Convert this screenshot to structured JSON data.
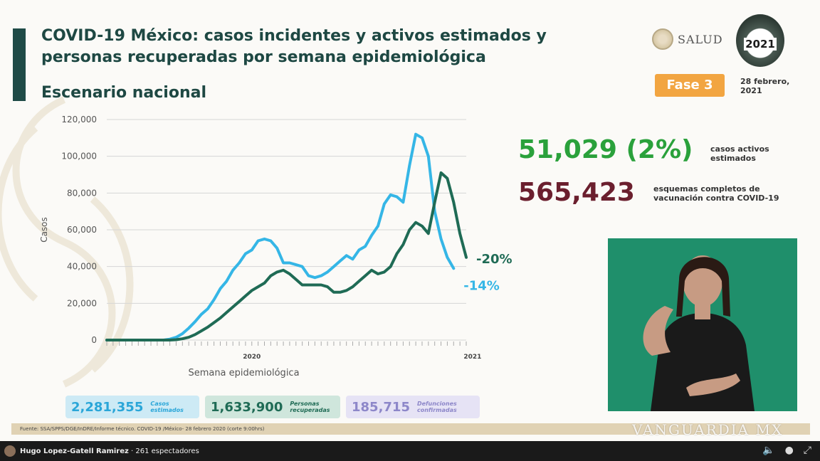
{
  "slide": {
    "title": "COVID-19 México: casos incidentes y activos estimados y personas recuperadas por semana epidemiológica",
    "subtitle": "Escenario nacional",
    "logo_text": "SALUD",
    "year_badge": "2021",
    "phase": "Fase 3",
    "date": "28 febrero, 2021",
    "source": "Fuente: SSA/SPPS/DGE/InDRE/Informe técnico. COVID-19 /México- 28 febrero 2020 (corte 9:00hrs)",
    "watermark": "VANGUARDIA MX"
  },
  "stats": {
    "active_value": "51,029 (2%)",
    "active_label": "casos activos estimados",
    "active_color": "#2aa13b",
    "vaccine_value": "565,423",
    "vaccine_label": "esquemas completos de vacunación contra COVID-19",
    "vaccine_color": "#6b1f2e"
  },
  "summary": [
    {
      "value": "2,281,355",
      "label": "Casos estimados",
      "bg": "#cdeaf5",
      "color": "#2aa6d8"
    },
    {
      "value": "1,633,900",
      "label": "Personas recuperadas",
      "bg": "#cfe6dc",
      "color": "#1f6b55"
    },
    {
      "value": "185,715",
      "label": "Defunciones confirmadas",
      "bg": "#e6e3f5",
      "color": "#8d87c9"
    }
  ],
  "stream": {
    "presenter": "Hugo Lopez-Gatell Ramirez",
    "viewers": "261 espectadores",
    "icons": [
      "volume-icon",
      "location-icon",
      "expand-icon"
    ]
  },
  "chart_data": {
    "type": "line",
    "ylabel": "Casos",
    "xlabel": "Semana epidemiológica",
    "ylim": [
      0,
      120000
    ],
    "yticks": [
      0,
      20000,
      40000,
      60000,
      80000,
      100000,
      120000
    ],
    "ytick_labels": [
      "0",
      "20,000",
      "40,000",
      "60,000",
      "80,000",
      "100,000",
      "120,000"
    ],
    "year_labels": [
      {
        "week": 23,
        "label": "2020"
      },
      {
        "week": 58,
        "label": "2021"
      }
    ],
    "series": [
      {
        "color": "#35b6e6",
        "end_label": "-14%",
        "values": [
          0,
          0,
          0,
          0,
          0,
          0,
          0,
          0,
          0,
          0,
          500,
          1500,
          3500,
          6500,
          10000,
          14000,
          17000,
          22000,
          28000,
          32000,
          38000,
          42000,
          47000,
          49000,
          54000,
          55000,
          54000,
          50000,
          42000,
          42000,
          41000,
          40000,
          35000,
          34000,
          35000,
          37000,
          40000,
          43000,
          46000,
          44000,
          49000,
          51000,
          57000,
          62000,
          74000,
          79000,
          78000,
          75000,
          95000,
          112000,
          110000,
          100000,
          70000,
          55000,
          45000,
          39000
        ]
      },
      {
        "color": "#1f6b55",
        "end_label": "-20%",
        "values": [
          0,
          0,
          0,
          0,
          0,
          0,
          0,
          0,
          0,
          0,
          0,
          200,
          700,
          1500,
          3000,
          5000,
          7000,
          9500,
          12000,
          15000,
          18000,
          21000,
          24000,
          27000,
          29000,
          31000,
          35000,
          37000,
          38000,
          36000,
          33000,
          30000,
          30000,
          30000,
          30000,
          29000,
          26000,
          26000,
          27000,
          29000,
          32000,
          35000,
          38000,
          36000,
          37000,
          40000,
          47000,
          52000,
          60000,
          64000,
          62000,
          58000,
          75000,
          91000,
          88000,
          75000,
          58000,
          45000
        ]
      }
    ]
  }
}
